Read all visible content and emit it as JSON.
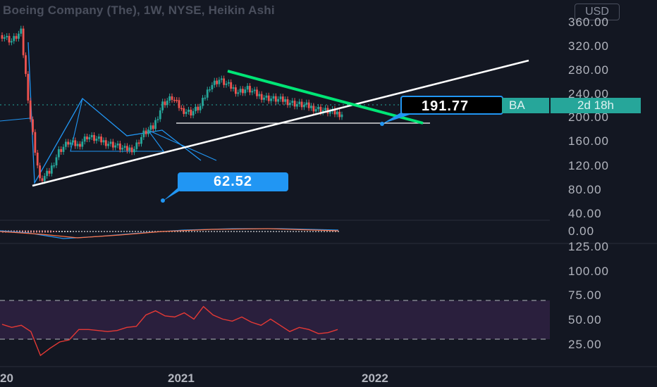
{
  "chart_header": {
    "title": "Boeing Company (The), 1W, NYSE, Heikin Ashi",
    "currency": "USD"
  },
  "price_axis": {
    "labels": [
      "360.00",
      "320.00",
      "280.00",
      "240.00",
      "200.00",
      "160.00",
      "120.00",
      "80.00",
      "40.00"
    ]
  },
  "macd_axis": {
    "labels": [
      "0.00"
    ]
  },
  "rsi_axis": {
    "labels": [
      "125.00",
      "100.00",
      "75.00",
      "50.00",
      "25.00"
    ]
  },
  "time_axis": {
    "labels": [
      "20",
      "2021",
      "2022"
    ]
  },
  "annotations": {
    "low_callout": "62.52",
    "price_callout": "191.77",
    "ticker_tag": "BA",
    "countdown_tag": "2d 18h"
  },
  "colors": {
    "background": "#131722",
    "up_candle": "#26a69a",
    "down_candle": "#ef5350",
    "downtrend_line": "#00e676",
    "uptrend_line": "#ffffff",
    "callout": "#2196f3",
    "rsi_line": "#e53935",
    "rsi_band": "#2a1f3d"
  },
  "chart_data": {
    "type": "line",
    "title": "Boeing Company (The), 1W, NYSE, Heikin Ashi",
    "ylabel": "USD",
    "ylim": [
      40,
      360
    ],
    "series": [
      {
        "values": [
          340,
          330,
          345,
          200,
          95,
          110,
          145,
          160,
          155,
          170,
          165,
          160,
          155,
          148,
          150,
          175,
          185,
          225,
          235,
          215,
          210,
          220,
          255,
          265,
          255,
          245,
          250,
          240,
          235,
          232,
          230,
          225,
          222,
          218,
          214,
          210,
          208
        ]
      }
    ],
    "rsi": {
      "levels": [
        70,
        30
      ],
      "values": [
        55,
        52,
        54,
        48,
        25,
        32,
        38,
        40,
        50,
        50,
        49,
        48,
        49,
        52,
        53,
        64,
        68,
        63,
        62,
        66,
        60,
        72,
        64,
        60,
        58,
        62,
        57,
        54,
        60,
        54,
        48,
        52,
        50,
        46,
        47,
        50
      ],
      "ylim": [
        15,
        130
      ]
    }
  }
}
